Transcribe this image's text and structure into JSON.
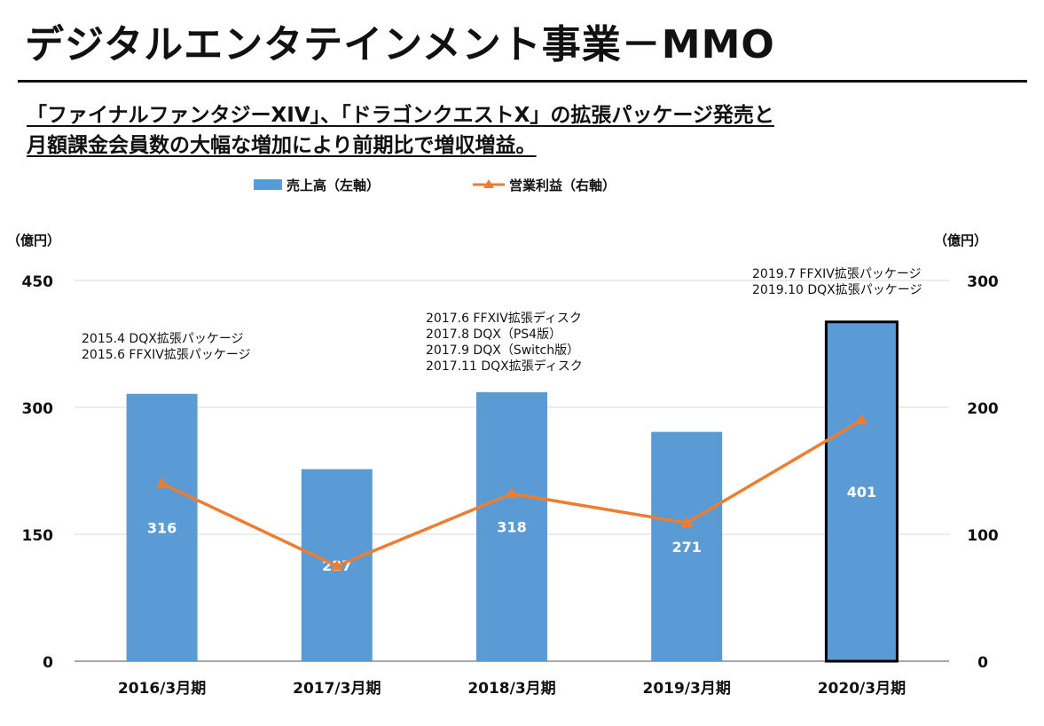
{
  "page": {
    "title": "デジタルエンタテインメント事業－MMO",
    "subtitle_line1": "「ファイナルファンタジーXIV」、「ドラゴンクエストX」の拡張パッケージ発売と",
    "subtitle_line2": "月額課金会員数の大幅な増加により前期比で増収増益。"
  },
  "chart_data": {
    "type": "bar",
    "categories": [
      "2016/3月期",
      "2017/3月期",
      "2018/3月期",
      "2019/3月期",
      "2020/3月期"
    ],
    "series": [
      {
        "name": "売上高（左軸）",
        "type": "bar",
        "axis": "left",
        "values": [
          316,
          227,
          318,
          271,
          401
        ],
        "color": "#5b9bd5"
      },
      {
        "name": "営業利益（右軸）",
        "type": "line",
        "axis": "right",
        "values": [
          140,
          75,
          132,
          109,
          190
        ],
        "color": "#ed7d31"
      }
    ],
    "left_axis": {
      "unit": "（億円）",
      "ylim": [
        0,
        450
      ],
      "ticks": [
        0,
        150,
        300,
        450
      ]
    },
    "right_axis": {
      "unit": "（億円）",
      "ylim": [
        0,
        300
      ],
      "ticks": [
        0,
        100,
        200,
        300
      ]
    },
    "highlighted_category": "2020/3月期",
    "grid": true,
    "legend_position": "top",
    "annotations": [
      {
        "category": "2016/3月期",
        "lines": [
          "2015.4 DQX拡張パッケージ",
          "2015.6 FFXIV拡張パッケージ"
        ]
      },
      {
        "category": "2018/3月期",
        "lines": [
          "2017.6 FFXIV拡張ディスク",
          "2017.8 DQX（PS4版）",
          "2017.9 DQX（Switch版）",
          "2017.11 DQX拡張ディスク"
        ]
      },
      {
        "category": "2020/3月期",
        "lines": [
          "2019.7 FFXIV拡張パッケージ",
          "2019.10 DQX拡張パッケージ"
        ]
      }
    ]
  }
}
